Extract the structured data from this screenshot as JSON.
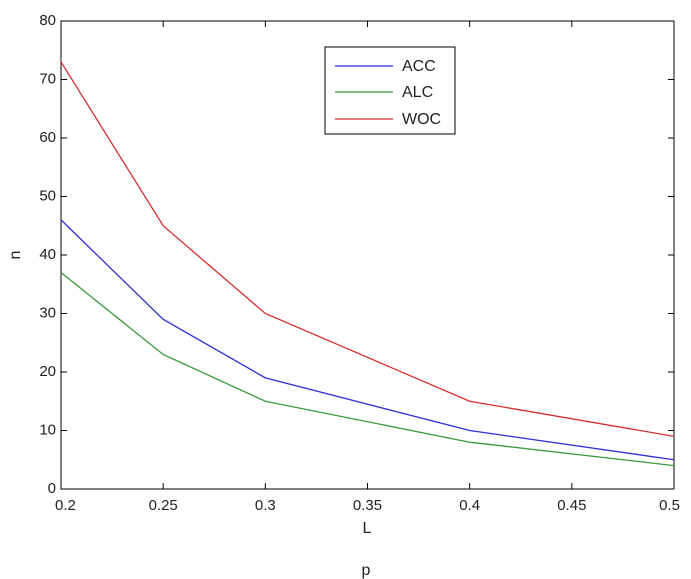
{
  "chart_data": {
    "type": "line",
    "title": "",
    "xlabel": "L",
    "ylabel": "n",
    "footer_label": "p",
    "xlim": [
      0.2,
      0.5
    ],
    "ylim": [
      0,
      80
    ],
    "xticks": [
      "0.2",
      "0.25",
      "0.3",
      "0.35",
      "0.4",
      "0.45",
      "0.5"
    ],
    "yticks": [
      "0",
      "10",
      "20",
      "30",
      "40",
      "50",
      "60",
      "70",
      "80"
    ],
    "grid": false,
    "legend_position": "top-right",
    "series": [
      {
        "name": "ACC",
        "color": "#2e2ed6",
        "x": [
          0.2,
          0.25,
          0.3,
          0.4,
          0.5
        ],
        "y": [
          46,
          29,
          19,
          10,
          5
        ]
      },
      {
        "name": "ALC",
        "color": "#3b9a3b",
        "x": [
          0.2,
          0.25,
          0.3,
          0.4,
          0.5
        ],
        "y": [
          37,
          23,
          15,
          8,
          4
        ]
      },
      {
        "name": "WOC",
        "color": "#d62e2e",
        "x": [
          0.2,
          0.25,
          0.3,
          0.4,
          0.5
        ],
        "y": [
          73,
          45,
          30,
          15,
          9
        ]
      }
    ]
  }
}
